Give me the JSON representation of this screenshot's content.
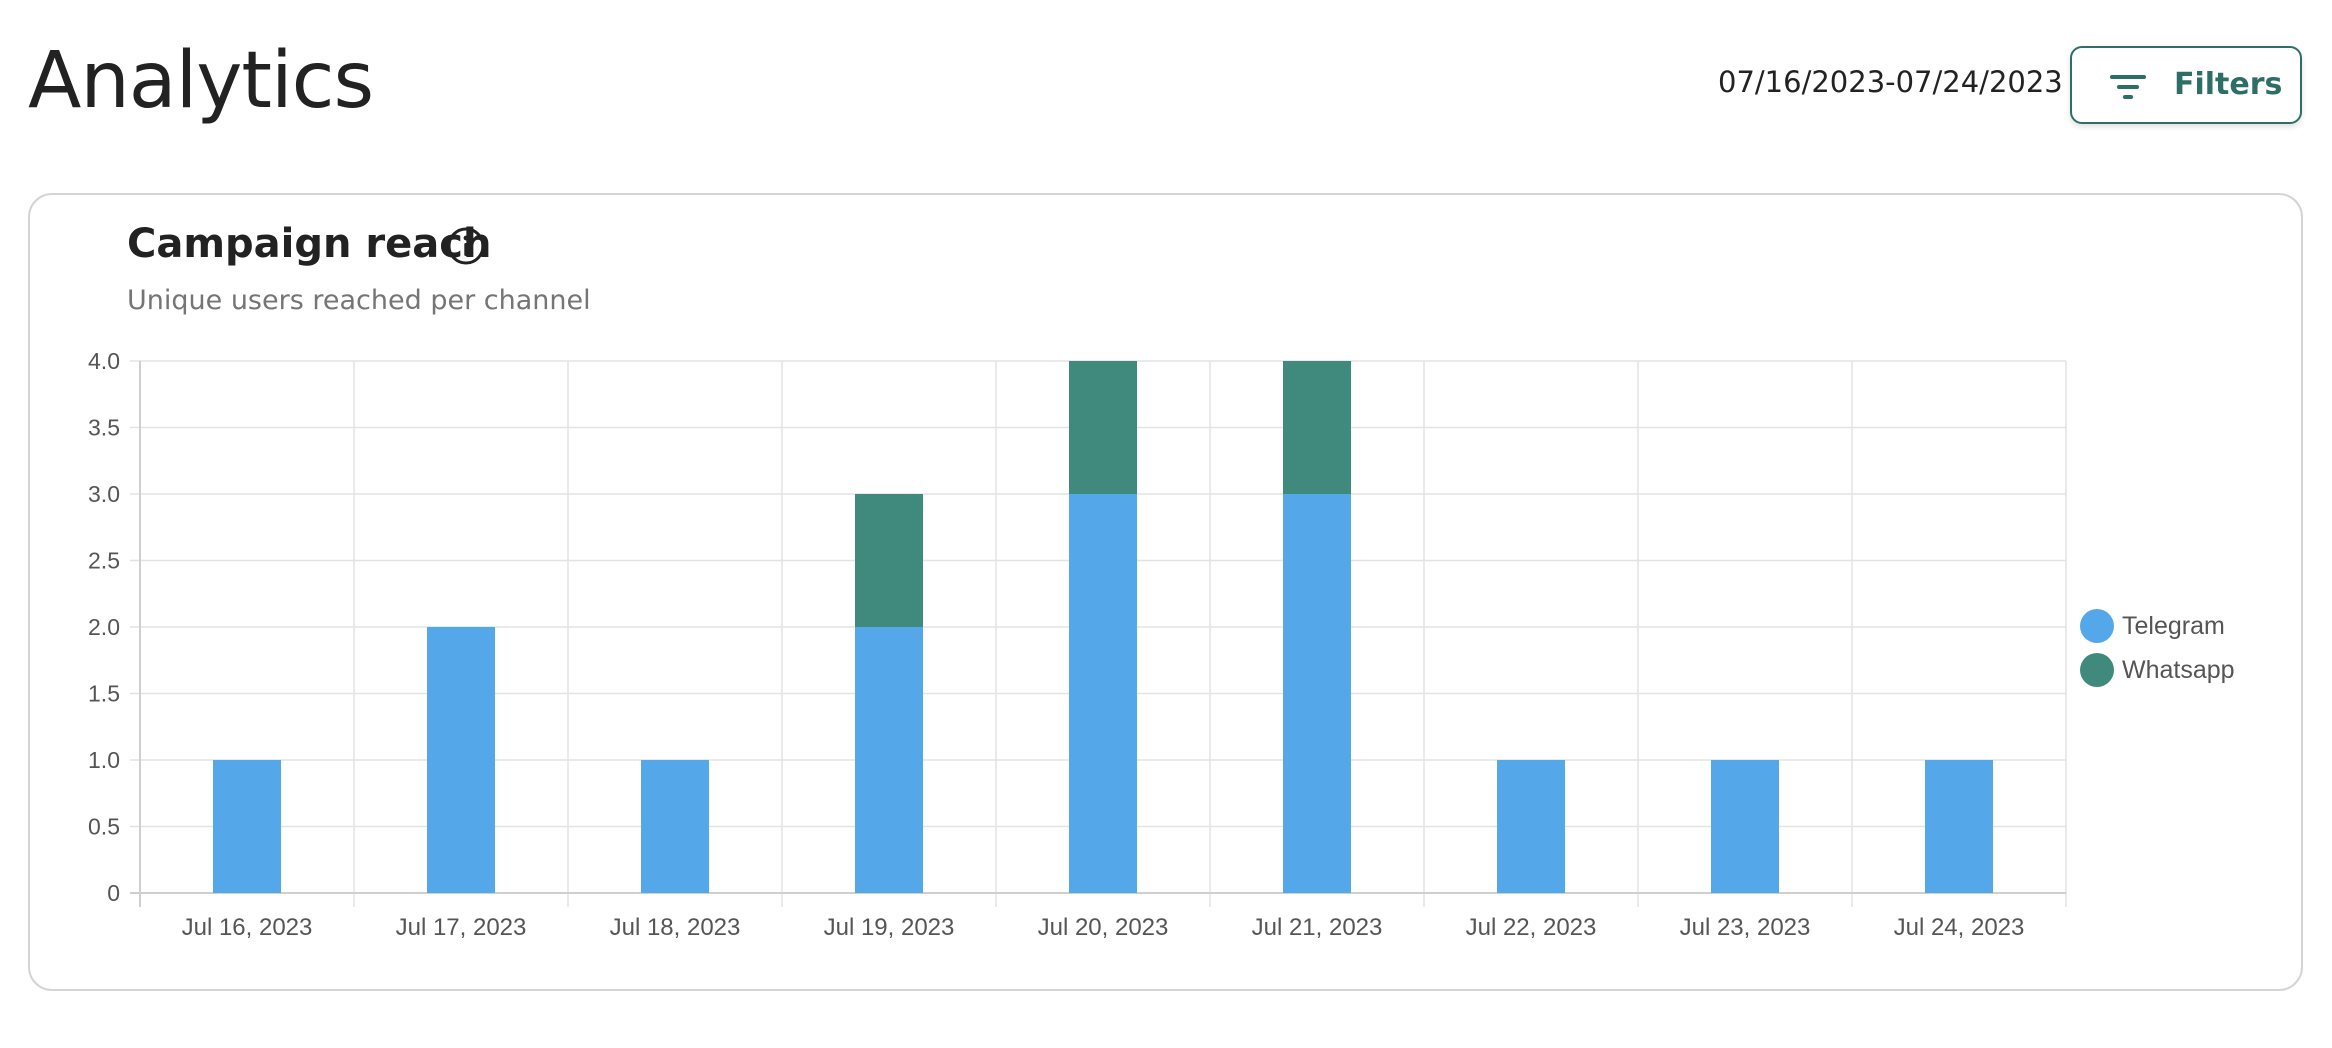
{
  "header": {
    "title": "Analytics",
    "date_range": "07/16/2023-07/24/2023",
    "filters_label": "Filters",
    "filters_icon": "filter-lines-icon"
  },
  "card": {
    "title": "Campaign reach",
    "subtitle": "Unique users reached per channel",
    "info_icon": "info-circle-icon"
  },
  "colors": {
    "accent": "#2d6e66",
    "telegram": "#54a7e8",
    "whatsapp": "#3f8a7c",
    "grid": "#e3e3e3"
  },
  "chart_data": {
    "type": "bar",
    "stacked": true,
    "categories": [
      "Jul 16, 2023",
      "Jul 17, 2023",
      "Jul 18, 2023",
      "Jul 19, 2023",
      "Jul 20, 2023",
      "Jul 21, 2023",
      "Jul 22, 2023",
      "Jul 23, 2023",
      "Jul 24, 2023"
    ],
    "series": [
      {
        "name": "Telegram",
        "color": "#54a7e8",
        "values": [
          1,
          2,
          1,
          2,
          3,
          3,
          1,
          1,
          1
        ]
      },
      {
        "name": "Whatsapp",
        "color": "#3f8a7c",
        "values": [
          0,
          0,
          0,
          1,
          1,
          1,
          0,
          0,
          0
        ]
      }
    ],
    "y_ticks": [
      "0",
      "0.5",
      "1.0",
      "1.5",
      "2.0",
      "2.5",
      "3.0",
      "3.5",
      "4.0"
    ],
    "ylim": [
      0,
      4
    ],
    "grid": true,
    "legend_position": "right"
  }
}
